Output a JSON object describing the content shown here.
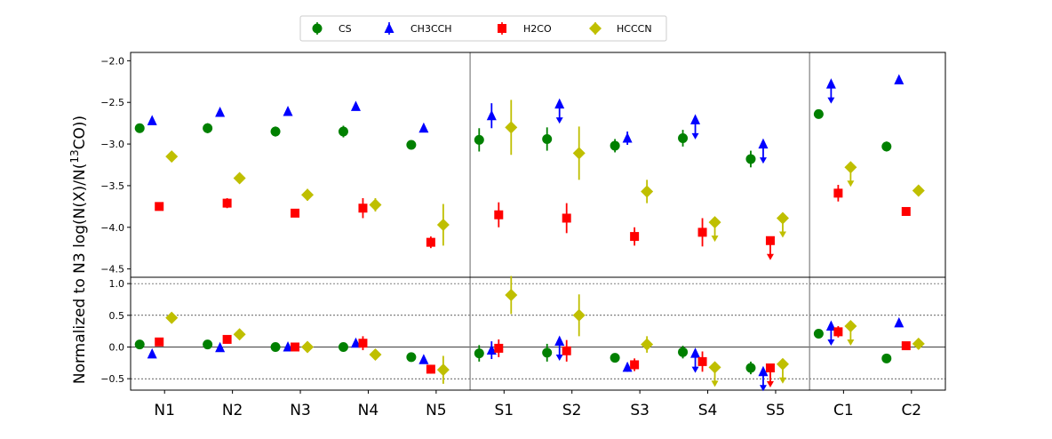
{
  "chart_data": {
    "type": "scatter",
    "ylabel_pre": "Normalized to N3 log(N(X)/N(",
    "ylabel_sup": "13",
    "ylabel_post": "CO))",
    "categories": [
      "N1",
      "N2",
      "N3",
      "N4",
      "N5",
      "S1",
      "S2",
      "S3",
      "S4",
      "S5",
      "C1",
      "C2"
    ],
    "group_separators_after": [
      "N5",
      "S5"
    ],
    "legend": [
      {
        "name": "CS",
        "color": "#008000",
        "marker": "circle"
      },
      {
        "name": "CH3CCH",
        "color": "#0000ff",
        "marker": "triangle"
      },
      {
        "name": "H2CO",
        "color": "#ff0000",
        "marker": "square"
      },
      {
        "name": "HCCCN",
        "color": "#bfbf00",
        "marker": "diamond"
      }
    ],
    "top_panel": {
      "ylim": [
        -4.6,
        -1.9
      ],
      "yticks": [
        -2.0,
        -2.5,
        -3.0,
        -3.5,
        -4.0,
        -4.5
      ],
      "ytick_labels": [
        "−2.0",
        "−2.5",
        "−3.0",
        "−3.5",
        "−4.0",
        "−4.5"
      ],
      "series": [
        {
          "name": "CS",
          "values": [
            -2.81,
            -2.81,
            -2.85,
            -2.85,
            -3.01,
            -2.95,
            -2.94,
            -3.02,
            -2.93,
            -3.18,
            -2.64,
            -3.03
          ],
          "err": [
            0.04,
            0.06,
            0.06,
            0.07,
            0.04,
            0.14,
            0.14,
            0.08,
            0.1,
            0.1,
            0.05,
            0.06
          ],
          "limit": [
            null,
            null,
            null,
            null,
            null,
            null,
            null,
            null,
            null,
            null,
            null,
            null
          ]
        },
        {
          "name": "CH3CCH",
          "values": [
            -2.72,
            -2.62,
            -2.61,
            -2.55,
            -2.81,
            -2.66,
            -2.52,
            -2.93,
            -2.71,
            -3.0,
            -2.28,
            -2.23
          ],
          "err": [
            0.04,
            0.04,
            0.03,
            0.03,
            0.04,
            0.15,
            0.0,
            0.08,
            0.0,
            0.0,
            0.0,
            0.02
          ],
          "limit": [
            null,
            null,
            null,
            null,
            null,
            null,
            "upper",
            null,
            "upper",
            "upper",
            "upper",
            null
          ]
        },
        {
          "name": "H2CO",
          "values": [
            -3.75,
            -3.71,
            -3.83,
            -3.77,
            -4.18,
            -3.85,
            -3.89,
            -4.11,
            -4.06,
            -4.16,
            -3.59,
            -3.81
          ],
          "err": [
            0.04,
            0.06,
            0.05,
            0.12,
            0.07,
            0.15,
            0.18,
            0.11,
            0.17,
            0.0,
            0.1,
            0.04
          ],
          "limit": [
            null,
            null,
            null,
            null,
            null,
            null,
            null,
            null,
            null,
            "upper",
            null,
            null
          ]
        },
        {
          "name": "HCCCN",
          "values": [
            -3.15,
            -3.41,
            -3.61,
            -3.73,
            -3.97,
            -2.8,
            -3.11,
            -3.57,
            -3.94,
            -3.89,
            -3.28,
            -3.56
          ],
          "err": [
            0.05,
            0.05,
            0.07,
            0.08,
            0.25,
            0.33,
            0.32,
            0.14,
            0.0,
            0.0,
            0.0,
            0.03
          ],
          "limit": [
            null,
            null,
            null,
            null,
            null,
            null,
            null,
            null,
            "upper",
            "upper",
            "upper",
            null
          ]
        }
      ]
    },
    "bottom_panel": {
      "ylim": [
        -0.68,
        1.1
      ],
      "yticks": [
        1.0,
        0.5,
        0.0,
        -0.5
      ],
      "ytick_labels": [
        "1.0",
        "0.5",
        "0.0",
        "−0.5"
      ],
      "dashed_lines": [
        1.0,
        0.5,
        -0.5
      ],
      "solid_lines": [
        0.0
      ],
      "series": [
        {
          "name": "CS",
          "values": [
            0.04,
            0.04,
            0.0,
            0.0,
            -0.16,
            -0.1,
            -0.09,
            -0.17,
            -0.08,
            -0.33,
            0.21,
            -0.18
          ],
          "err": [
            0.04,
            0.06,
            0.04,
            0.06,
            0.04,
            0.13,
            0.14,
            0.07,
            0.1,
            0.1,
            0.05,
            0.04
          ],
          "limit": [
            null,
            null,
            null,
            null,
            null,
            null,
            null,
            null,
            null,
            null,
            null,
            null
          ]
        },
        {
          "name": "CH3CCH",
          "values": [
            -0.11,
            -0.01,
            0.0,
            0.06,
            -0.2,
            -0.05,
            0.09,
            -0.32,
            -0.1,
            -0.39,
            0.33,
            0.38
          ],
          "err": [
            0.03,
            0.03,
            0.03,
            0.03,
            0.04,
            0.14,
            0.0,
            0.07,
            0.0,
            0.0,
            0.0,
            0.02
          ],
          "limit": [
            null,
            null,
            null,
            null,
            null,
            null,
            "upper",
            null,
            "upper",
            "upper",
            "upper",
            null
          ]
        },
        {
          "name": "H2CO",
          "values": [
            0.08,
            0.12,
            0.0,
            0.06,
            -0.35,
            -0.02,
            -0.06,
            -0.28,
            -0.23,
            -0.33,
            0.24,
            0.02
          ],
          "err": [
            0.04,
            0.06,
            0.04,
            0.11,
            0.07,
            0.14,
            0.17,
            0.1,
            0.16,
            0.0,
            0.09,
            0.04
          ],
          "limit": [
            null,
            null,
            null,
            null,
            null,
            null,
            null,
            null,
            null,
            "upper",
            null,
            null
          ]
        },
        {
          "name": "HCCCN",
          "values": [
            0.46,
            0.2,
            0.0,
            -0.12,
            -0.36,
            0.82,
            0.5,
            0.04,
            -0.32,
            -0.27,
            0.33,
            0.05
          ],
          "err": [
            0.04,
            0.04,
            0.06,
            0.07,
            0.22,
            0.3,
            0.33,
            0.13,
            0.0,
            0.0,
            0.0,
            0.03
          ],
          "limit": [
            null,
            null,
            null,
            null,
            null,
            null,
            null,
            null,
            "upper",
            "upper",
            "upper",
            null
          ]
        }
      ]
    }
  }
}
